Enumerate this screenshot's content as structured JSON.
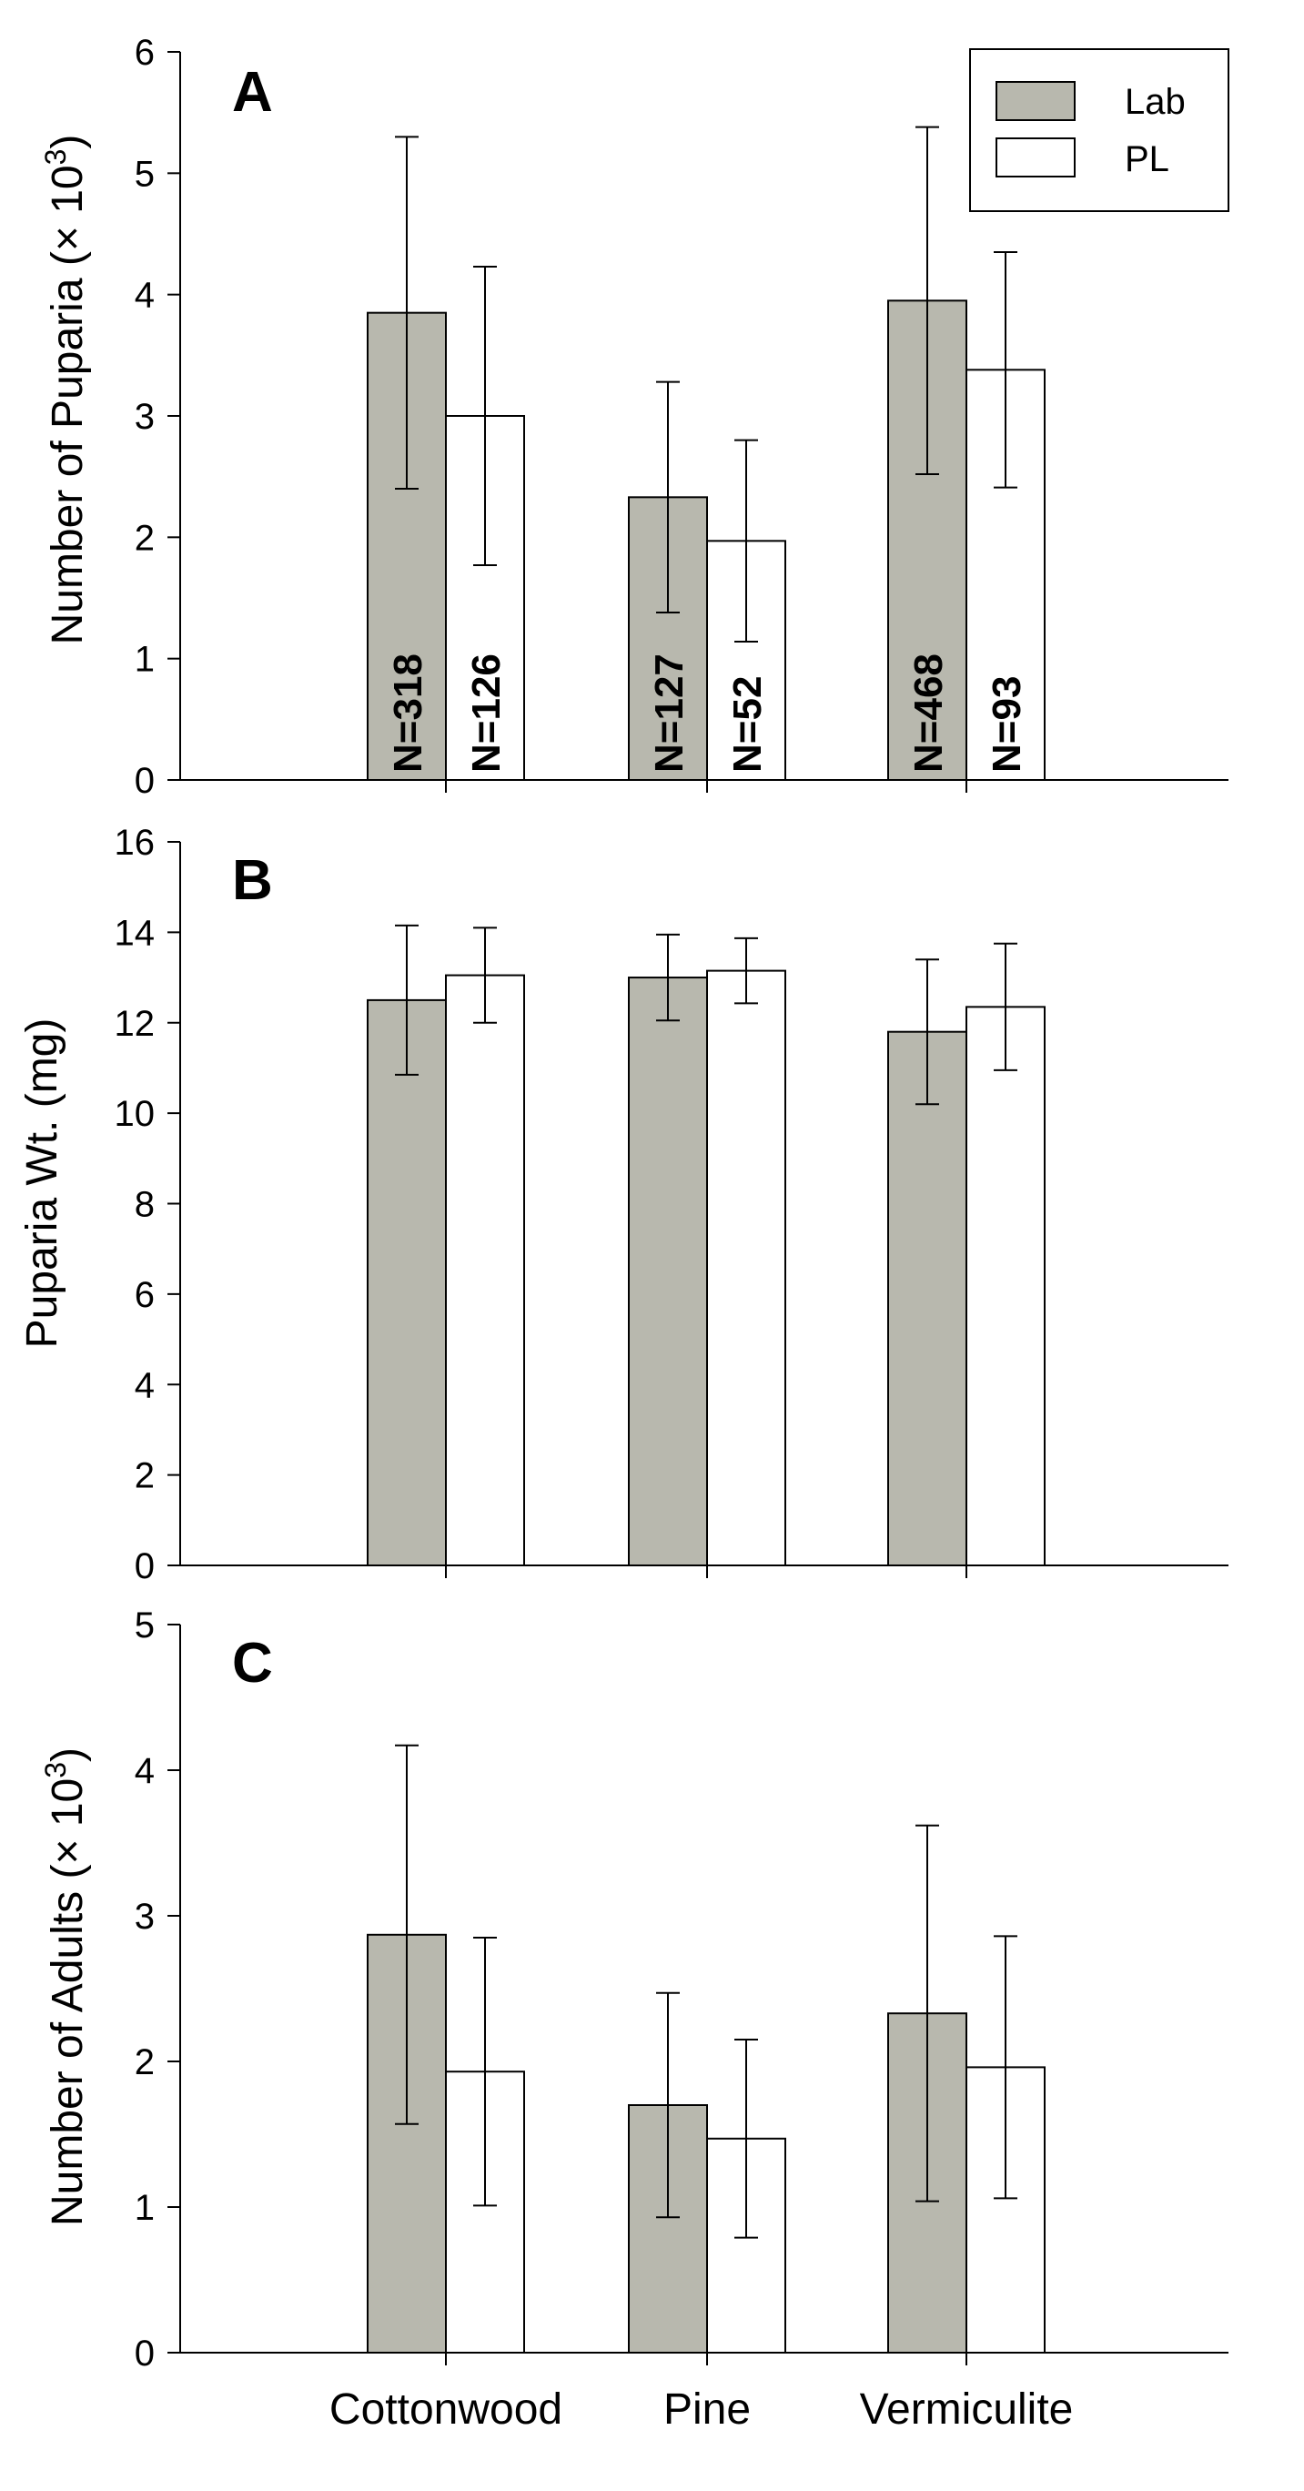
{
  "chart_data": [
    {
      "type": "bar",
      "panel": "A",
      "categories": [
        "Cottonwood",
        "Pine",
        "Vermiculite"
      ],
      "series": [
        {
          "name": "Lab",
          "color": "#b8b8ae",
          "values": [
            3.85,
            2.33,
            3.95
          ],
          "errors": [
            1.45,
            0.95,
            1.43
          ]
        },
        {
          "name": "PL",
          "color": "#ffffff",
          "values": [
            3.0,
            1.97,
            3.38
          ],
          "errors": [
            1.23,
            0.83,
            0.97
          ]
        }
      ],
      "sample_sizes": [
        [
          "N=318",
          "N=126"
        ],
        [
          "N=127",
          "N=52"
        ],
        [
          "N=468",
          "N=93"
        ]
      ],
      "ylabel": "Number of Puparia (× 10",
      "ylabel_sup": "3",
      "ylabel_close": ")",
      "ylim": [
        0,
        6
      ],
      "yticks": [
        0,
        1,
        2,
        3,
        4,
        5,
        6
      ],
      "legend": {
        "position": "top-right"
      }
    },
    {
      "type": "bar",
      "panel": "B",
      "categories": [
        "Cottonwood",
        "Pine",
        "Vermiculite"
      ],
      "series": [
        {
          "name": "Lab",
          "color": "#b8b8ae",
          "values": [
            12.5,
            13.0,
            11.8
          ],
          "errors": [
            1.65,
            0.95,
            1.6
          ]
        },
        {
          "name": "PL",
          "color": "#ffffff",
          "values": [
            13.05,
            13.15,
            12.35
          ],
          "errors": [
            1.05,
            0.72,
            1.4
          ]
        }
      ],
      "ylabel": "Puparia Wt. (mg)",
      "ylim": [
        0,
        16
      ],
      "yticks": [
        0,
        2,
        4,
        6,
        8,
        10,
        12,
        14,
        16
      ]
    },
    {
      "type": "bar",
      "panel": "C",
      "categories": [
        "Cottonwood",
        "Pine",
        "Vermiculite"
      ],
      "series": [
        {
          "name": "Lab",
          "color": "#b8b8ae",
          "values": [
            2.87,
            1.7,
            2.33
          ],
          "errors": [
            1.3,
            0.77,
            1.29
          ]
        },
        {
          "name": "PL",
          "color": "#ffffff",
          "values": [
            1.93,
            1.47,
            1.96
          ],
          "errors": [
            0.92,
            0.68,
            0.9
          ]
        }
      ],
      "ylabel": "Number of Adults (× 10",
      "ylabel_sup": "3",
      "ylabel_close": ")",
      "ylim": [
        0,
        5
      ],
      "yticks": [
        0,
        1,
        2,
        3,
        4,
        5
      ],
      "xlabels": [
        "Cottonwood",
        "Pine",
        "Vermiculite"
      ]
    }
  ]
}
